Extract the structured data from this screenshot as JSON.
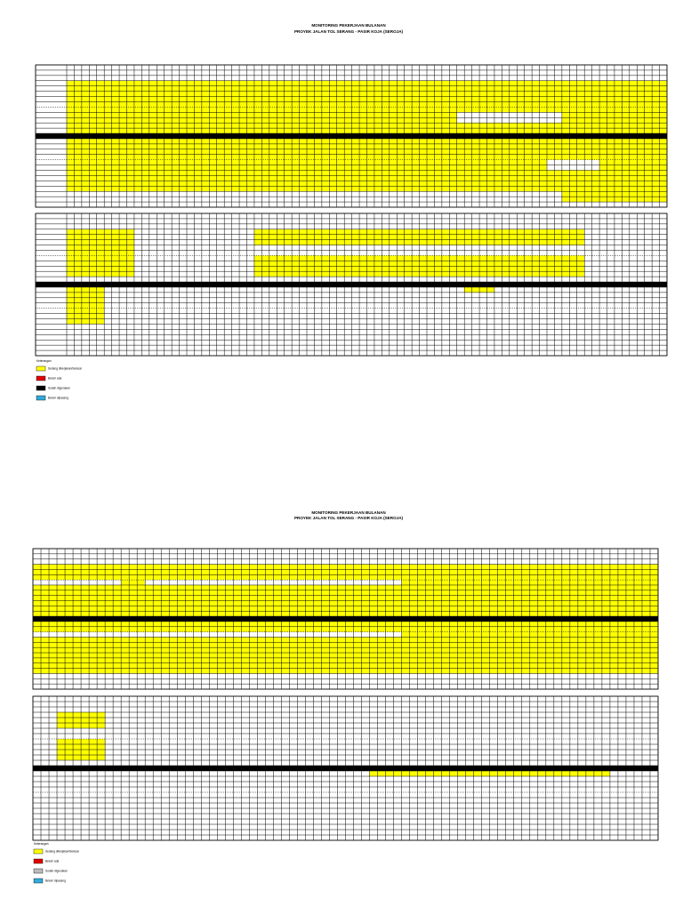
{
  "pages": [
    {
      "title": "MONITORING PEKERJAAN BULANAN",
      "subtitle": "PROYEK JALAN TOL SERANG - PASIR KOJA (SEROJA)",
      "legend": {
        "heading": "Keterangan",
        "items": [
          "Sedang dikerjakan/Selesai",
          "Belum ada",
          "Sudah digunakan",
          "Belum dipasang"
        ]
      }
    },
    {
      "title": "MONITORING PEKERJAAN BULANAN",
      "subtitle": "PROYEK JALAN TOL SERANG - PASIR KOJA (SEROJA)",
      "legend": {
        "heading": "Keterangan",
        "items": [
          "Sedang dikerjakan/Selesai",
          "Belum ada",
          "Sudah digunakan",
          "Belum dipasang"
        ]
      }
    }
  ]
}
